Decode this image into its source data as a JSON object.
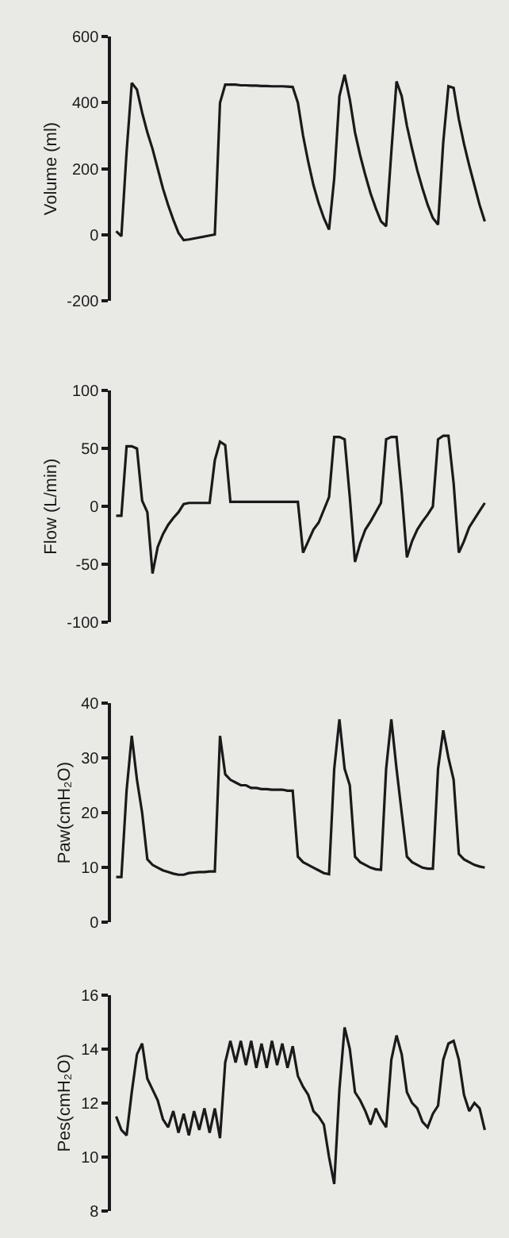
{
  "chart_data": [
    {
      "type": "line",
      "ylabel": "Volume (ml)",
      "categories": [
        null,
        null,
        null,
        null,
        null,
        null,
        null,
        null,
        null,
        null,
        null,
        null,
        null,
        null,
        null,
        null,
        null,
        null,
        null,
        null,
        null,
        null,
        null,
        null,
        null,
        null,
        null,
        null,
        null,
        null,
        null,
        null,
        null,
        null,
        null,
        null,
        null,
        null,
        null,
        null,
        null,
        null,
        null,
        null,
        null,
        null,
        null,
        null,
        null,
        null,
        null,
        null,
        null,
        null,
        null,
        null,
        null,
        null,
        null,
        null,
        null,
        null,
        null,
        null,
        null,
        null,
        null,
        null,
        null,
        null,
        null,
        null
      ],
      "color": "#1a1a1a",
      "ylim": [
        -200,
        600
      ],
      "yticks": [
        -200,
        0,
        200,
        400,
        600
      ],
      "tick_labels": "y",
      "values": [
        10,
        -5,
        250,
        460,
        440,
        370,
        310,
        260,
        200,
        140,
        90,
        45,
        5,
        -17,
        -15,
        -12,
        -9,
        -6,
        -3,
        0,
        400,
        455,
        455,
        455,
        453,
        453,
        452,
        452,
        451,
        451,
        450,
        450,
        450,
        449,
        448,
        400,
        300,
        220,
        150,
        95,
        50,
        15,
        170,
        420,
        485,
        410,
        310,
        240,
        180,
        125,
        80,
        40,
        25,
        250,
        465,
        420,
        330,
        260,
        195,
        140,
        90,
        50,
        30,
        280,
        450,
        445,
        350,
        275,
        210,
        150,
        90,
        40
      ]
    },
    {
      "type": "line",
      "ylabel": "Flow (L/min)",
      "categories": [
        null,
        null,
        null,
        null,
        null,
        null,
        null,
        null,
        null,
        null,
        null,
        null,
        null,
        null,
        null,
        null,
        null,
        null,
        null,
        null,
        null,
        null,
        null,
        null,
        null,
        null,
        null,
        null,
        null,
        null,
        null,
        null,
        null,
        null,
        null,
        null,
        null,
        null,
        null,
        null,
        null,
        null,
        null,
        null,
        null,
        null,
        null,
        null,
        null,
        null,
        null,
        null,
        null,
        null,
        null,
        null,
        null,
        null,
        null,
        null,
        null,
        null,
        null,
        null,
        null,
        null,
        null,
        null,
        null,
        null,
        null,
        null
      ],
      "color": "#1a1a1a",
      "ylim": [
        -100,
        100
      ],
      "yticks": [
        -100,
        -50,
        0,
        50,
        100
      ],
      "tick_labels": "y",
      "values": [
        -8,
        -8,
        52,
        52,
        50,
        5,
        -5,
        -58,
        -35,
        -24,
        -16,
        -10,
        -5,
        2,
        3,
        3,
        3,
        3,
        3,
        40,
        56,
        53,
        4,
        4,
        4,
        4,
        4,
        4,
        4,
        4,
        4,
        4,
        4,
        4,
        4,
        4,
        -40,
        -30,
        -20,
        -14,
        -3,
        8,
        60,
        60,
        58,
        8,
        -48,
        -32,
        -20,
        -13,
        -5,
        3,
        58,
        60,
        60,
        12,
        -44,
        -30,
        -20,
        -13,
        -7,
        0,
        58,
        61,
        61,
        20,
        -40,
        -30,
        -18,
        -11,
        -4,
        3
      ]
    },
    {
      "type": "line",
      "ylabel": "Paw(cmH₂O)",
      "categories": [
        null,
        null,
        null,
        null,
        null,
        null,
        null,
        null,
        null,
        null,
        null,
        null,
        null,
        null,
        null,
        null,
        null,
        null,
        null,
        null,
        null,
        null,
        null,
        null,
        null,
        null,
        null,
        null,
        null,
        null,
        null,
        null,
        null,
        null,
        null,
        null,
        null,
        null,
        null,
        null,
        null,
        null,
        null,
        null,
        null,
        null,
        null,
        null,
        null,
        null,
        null,
        null,
        null,
        null,
        null,
        null,
        null,
        null,
        null,
        null,
        null,
        null,
        null,
        null,
        null,
        null,
        null,
        null,
        null,
        null,
        null,
        null
      ],
      "color": "#1a1a1a",
      "ylim": [
        0,
        40
      ],
      "yticks": [
        0,
        10,
        20,
        30,
        40
      ],
      "tick_labels": "y",
      "values": [
        8.3,
        8.3,
        24,
        34,
        26,
        20,
        11.5,
        10.5,
        10,
        9.5,
        9.2,
        8.9,
        8.7,
        8.7,
        9,
        9.1,
        9.2,
        9.2,
        9.3,
        9.3,
        34,
        27,
        26,
        25.5,
        25,
        25,
        24.5,
        24.5,
        24.3,
        24.3,
        24.2,
        24.2,
        24.2,
        24,
        24,
        12,
        11,
        10.5,
        10,
        9.5,
        9,
        8.8,
        28,
        37,
        28,
        25,
        12,
        11,
        10.5,
        10,
        9.7,
        9.6,
        28,
        37,
        28,
        20,
        12,
        11,
        10.5,
        10,
        9.8,
        9.8,
        28,
        35,
        30,
        26,
        12.5,
        11.5,
        11,
        10.5,
        10.2,
        10
      ]
    },
    {
      "type": "line",
      "ylabel": "Pes(cmH₂O)",
      "categories": [
        null,
        null,
        null,
        null,
        null,
        null,
        null,
        null,
        null,
        null,
        null,
        null,
        null,
        null,
        null,
        null,
        null,
        null,
        null,
        null,
        null,
        null,
        null,
        null,
        null,
        null,
        null,
        null,
        null,
        null,
        null,
        null,
        null,
        null,
        null,
        null,
        null,
        null,
        null,
        null,
        null,
        null,
        null,
        null,
        null,
        null,
        null,
        null,
        null,
        null,
        null,
        null,
        null,
        null,
        null,
        null,
        null,
        null,
        null,
        null,
        null,
        null,
        null,
        null,
        null,
        null,
        null,
        null,
        null,
        null,
        null,
        null
      ],
      "color": "#1a1a1a",
      "ylim": [
        8,
        16
      ],
      "yticks": [
        8,
        10,
        12,
        14,
        16
      ],
      "tick_labels": "y",
      "values": [
        11.5,
        11,
        10.8,
        12.4,
        13.8,
        14.2,
        12.9,
        12.5,
        12.1,
        11.4,
        11.1,
        11.7,
        10.9,
        11.6,
        10.8,
        11.7,
        11.0,
        11.8,
        10.9,
        11.8,
        10.7,
        13.5,
        14.3,
        13.5,
        14.3,
        13.4,
        14.3,
        13.3,
        14.2,
        13.3,
        14.3,
        13.4,
        14.2,
        13.3,
        14.1,
        13.0,
        12.6,
        12.3,
        11.7,
        11.5,
        11.2,
        10.0,
        9.0,
        12.5,
        14.8,
        14.0,
        12.4,
        12.1,
        11.7,
        11.2,
        11.8,
        11.4,
        11.1,
        13.6,
        14.5,
        13.8,
        12.4,
        12.0,
        11.8,
        11.3,
        11.1,
        11.6,
        11.9,
        13.6,
        14.2,
        14.3,
        13.6,
        12.3,
        11.7,
        12.0,
        11.8,
        11.0
      ]
    }
  ]
}
